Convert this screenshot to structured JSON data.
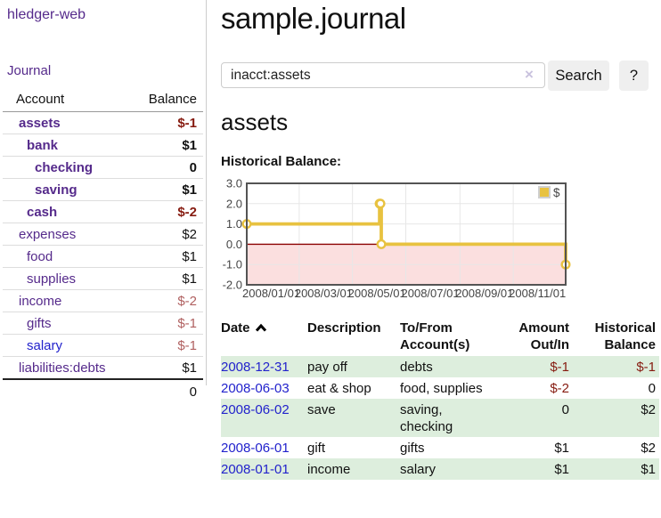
{
  "app": {
    "title": "hledger-web"
  },
  "colors": {
    "link_purple": "#552a8b",
    "link_blue": "#2222cc",
    "negative_strong": "#861b10",
    "negative_soft": "#b06060",
    "row_green": "#ddeedd",
    "series_gold": "#e8c240",
    "negative_region": "#fbdfdf",
    "zero_line": "#8b0000",
    "chart_border": "#545454",
    "gridline": "#e7e7e7"
  },
  "sidebar": {
    "nav": {
      "journal": "Journal"
    },
    "table": {
      "headers": {
        "account": "Account",
        "balance": "Balance"
      },
      "rows": [
        {
          "name": "assets",
          "balance": "$-1",
          "indent": 1,
          "bold": true,
          "negative": true,
          "link_color": "purple"
        },
        {
          "name": "bank",
          "balance": "$1",
          "indent": 2,
          "bold": true,
          "negative": false,
          "link_color": "purple"
        },
        {
          "name": "checking",
          "balance": "0",
          "indent": 3,
          "bold": true,
          "negative": false,
          "link_color": "purple"
        },
        {
          "name": "saving",
          "balance": "$1",
          "indent": 3,
          "bold": true,
          "negative": false,
          "link_color": "purple"
        },
        {
          "name": "cash",
          "balance": "$-2",
          "indent": 2,
          "bold": true,
          "negative": true,
          "link_color": "purple"
        },
        {
          "name": "expenses",
          "balance": "$2",
          "indent": 1,
          "bold": false,
          "negative": false,
          "link_color": "purple"
        },
        {
          "name": "food",
          "balance": "$1",
          "indent": 2,
          "bold": false,
          "negative": false,
          "link_color": "purple"
        },
        {
          "name": "supplies",
          "balance": "$1",
          "indent": 2,
          "bold": false,
          "negative": false,
          "link_color": "purple"
        },
        {
          "name": "income",
          "balance": "$-2",
          "indent": 1,
          "bold": false,
          "negative": true,
          "link_color": "purple"
        },
        {
          "name": "gifts",
          "balance": "$-1",
          "indent": 2,
          "bold": false,
          "negative": true,
          "link_color": "purple"
        },
        {
          "name": "salary",
          "balance": "$-1",
          "indent": 2,
          "bold": false,
          "negative": true,
          "link_color": "blue"
        },
        {
          "name": "liabilities:debts",
          "balance": "$1",
          "indent": 1,
          "bold": false,
          "negative": false,
          "link_color": "purple"
        }
      ],
      "total": "0"
    }
  },
  "header": {
    "title": "sample.journal"
  },
  "search": {
    "value": "inacct:assets",
    "clear_icon": "×",
    "button_label": "Search",
    "help_label": "?"
  },
  "account_page": {
    "heading": "assets",
    "chart_label": "Historical Balance:"
  },
  "chart_data": {
    "type": "line",
    "title": "Historical Balance:",
    "step": true,
    "series": [
      {
        "name": "$",
        "color": "#e8c240",
        "points": [
          [
            "2008-01-01",
            1.0
          ],
          [
            "2008-06-01",
            2.0
          ],
          [
            "2008-06-02",
            2.0
          ],
          [
            "2008-06-03",
            0.0
          ],
          [
            "2008-12-31",
            -1.0
          ]
        ]
      }
    ],
    "x_range": [
      "2008-01-01",
      "2008-12-31"
    ],
    "ylim": [
      -2.0,
      3.0
    ],
    "y_ticks": [
      "3.0",
      "2.0",
      "1.0",
      "0.0",
      "-1.0",
      "-2.0"
    ],
    "x_ticks": [
      "2008/01/01",
      "2008/03/01",
      "2008/05/01",
      "2008/07/01",
      "2008/09/01",
      "2008/11/01"
    ],
    "grid": true,
    "legend_position": "top-right",
    "negative_region_shaded": true
  },
  "register": {
    "headers": [
      "Date",
      "Description",
      "To/From Account(s)",
      "Amount Out/In",
      "Historical Balance"
    ],
    "rows": [
      {
        "date": "2008-12-31",
        "description": "pay off",
        "accounts": "debts",
        "amount": "$-1",
        "balance": "$-1",
        "amount_negative": true,
        "balance_negative": true
      },
      {
        "date": "2008-06-03",
        "description": "eat & shop",
        "accounts": "food, supplies",
        "amount": "$-2",
        "balance": "0",
        "amount_negative": true,
        "balance_negative": false
      },
      {
        "date": "2008-06-02",
        "description": "save",
        "accounts": "saving, checking",
        "amount": "0",
        "balance": "$2",
        "amount_negative": false,
        "balance_negative": false
      },
      {
        "date": "2008-06-01",
        "description": "gift",
        "accounts": "gifts",
        "amount": "$1",
        "balance": "$2",
        "amount_negative": false,
        "balance_negative": false
      },
      {
        "date": "2008-01-01",
        "description": "income",
        "accounts": "salary",
        "amount": "$1",
        "balance": "$1",
        "amount_negative": false,
        "balance_negative": false
      }
    ]
  }
}
